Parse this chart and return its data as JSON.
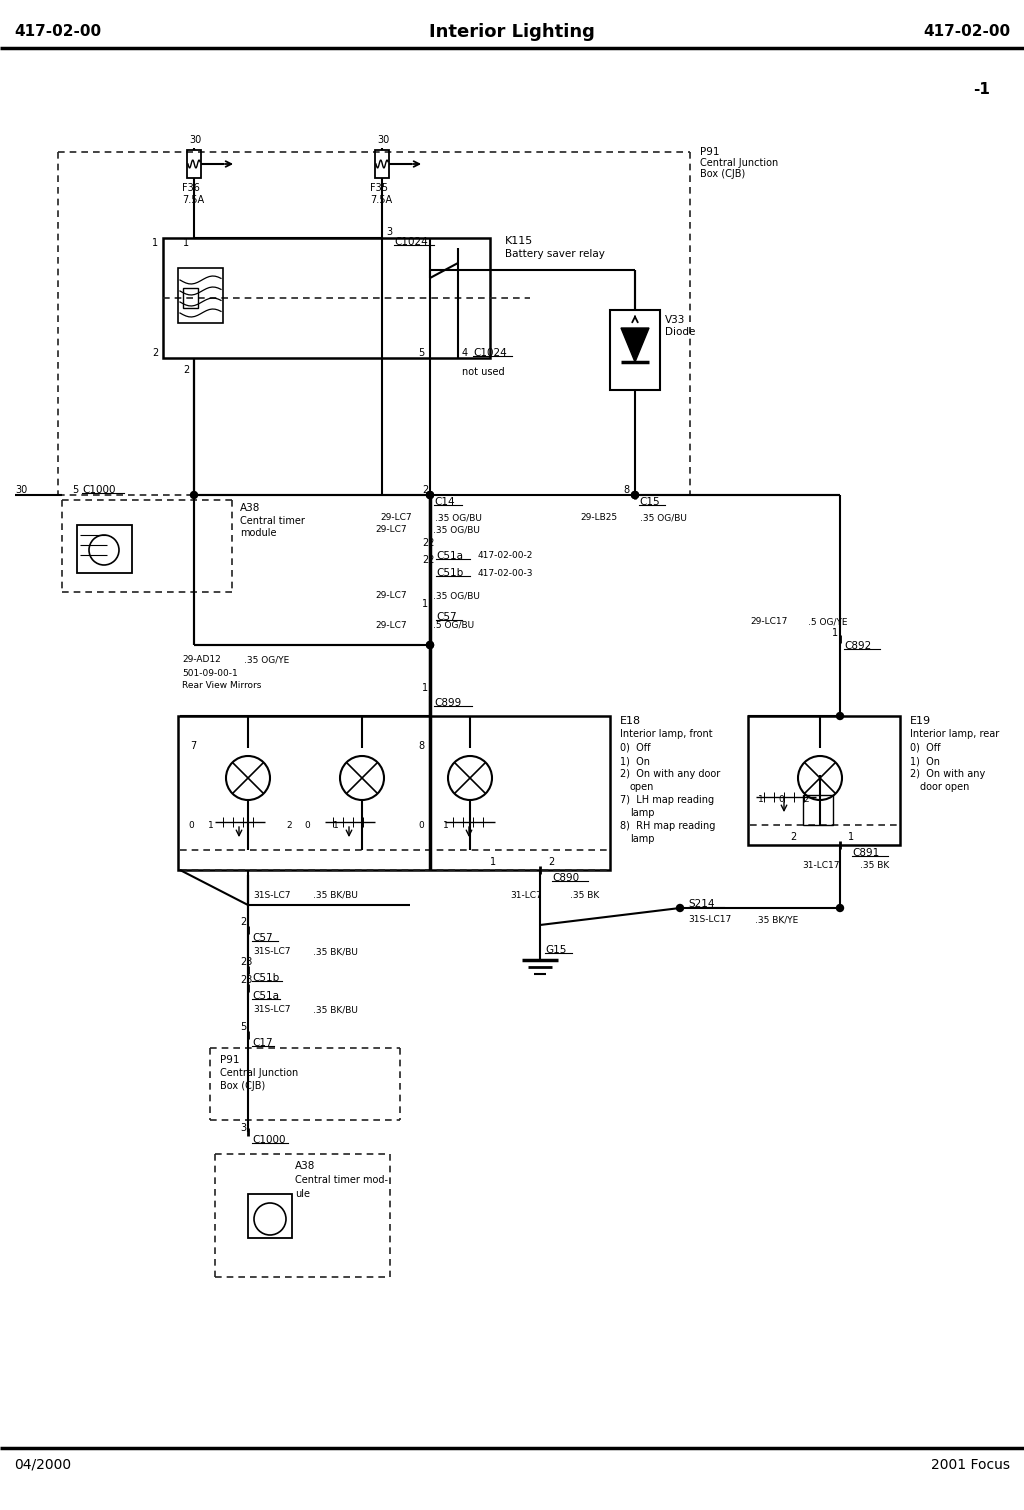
{
  "title_left": "417-02-00",
  "title_center": "Interior Lighting",
  "title_right": "417-02-00",
  "footer_left": "04/2000",
  "footer_right": "2001 Focus",
  "page_num": "-1",
  "bg_color": "#ffffff"
}
